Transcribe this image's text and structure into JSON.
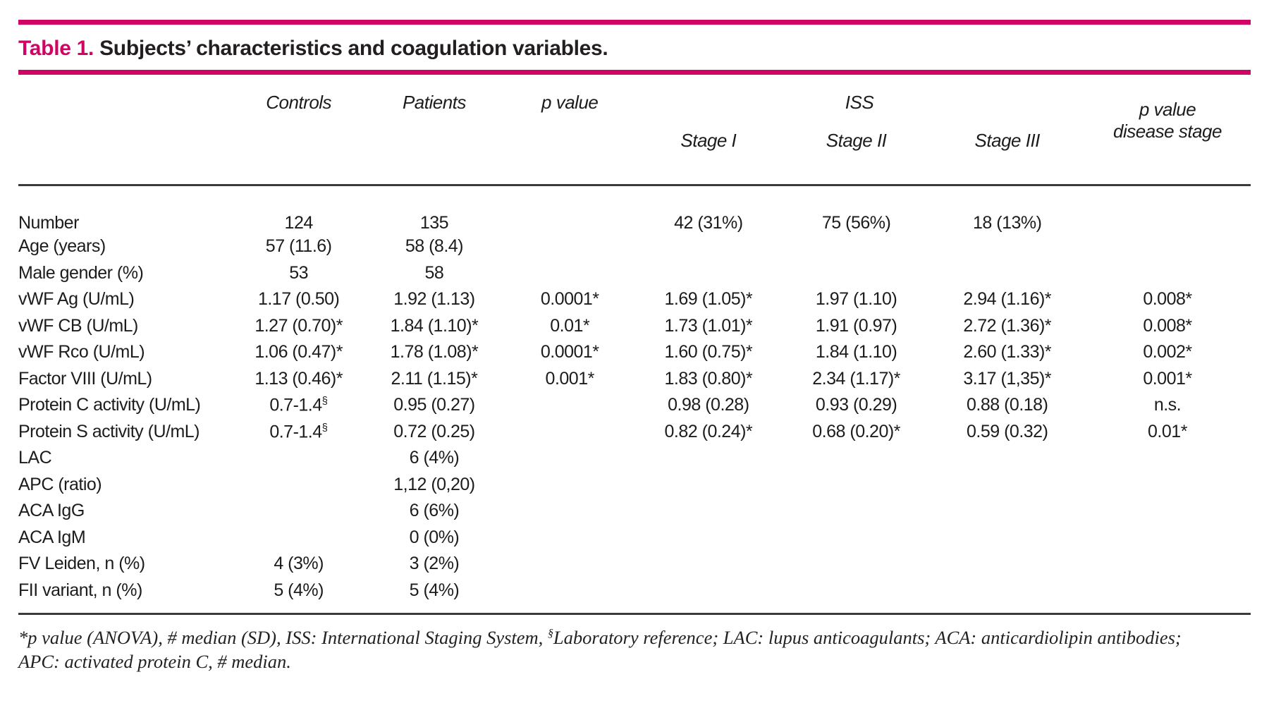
{
  "accent_color": "#cf0465",
  "title": {
    "label": "Table 1.",
    "text": "Subjects’ characteristics and coagulation variables."
  },
  "table": {
    "headers": {
      "controls": "Controls",
      "patients": "Patients",
      "p_value": "p value",
      "iss": "ISS",
      "stage1": "Stage I",
      "stage2": "Stage II",
      "stage3": "Stage III",
      "p_value_disease_line1": "p value",
      "p_value_disease_line2": "disease stage"
    },
    "rows": [
      {
        "cells": [
          "Number",
          "124",
          "135",
          "",
          "42 (31%)",
          "75 (56%)",
          "18 (13%)",
          ""
        ]
      },
      {
        "cells": [
          "Age (years)",
          "57 (11.6)",
          "58 (8.4)",
          "",
          "",
          "",
          "",
          ""
        ]
      },
      {
        "cells": [
          "Male gender (%)",
          "53",
          "58",
          "",
          "",
          "",
          "",
          ""
        ]
      },
      {
        "cells": [
          "vWF Ag (U/mL)",
          "1.17 (0.50)",
          "1.92 (1.13)",
          "0.0001*",
          "1.69 (1.05)*",
          "1.97 (1.10)",
          "2.94 (1.16)*",
          "0.008*"
        ]
      },
      {
        "cells": [
          "vWF CB (U/mL)",
          "1.27 (0.70)*",
          "1.84 (1.10)*",
          "0.01*",
          "1.73 (1.01)*",
          "1.91 (0.97)",
          "2.72 (1.36)*",
          "0.008*"
        ]
      },
      {
        "cells": [
          "vWF Rco (U/mL)",
          "1.06 (0.47)*",
          "1.78 (1.08)*",
          "0.0001*",
          "1.60 (0.75)*",
          "1.84 (1.10)",
          "2.60 (1.33)*",
          "0.002*"
        ]
      },
      {
        "cells": [
          "Factor VIII (U/mL)",
          "1.13 (0.46)*",
          "2.11 (1.15)*",
          "0.001*",
          "1.83 (0.80)*",
          "2.34 (1.17)*",
          "3.17 (1,35)*",
          "0.001*"
        ]
      },
      {
        "cells": [
          "Protein C activity (U/mL)",
          {
            "text": "0.7-1.4",
            "sup": "§"
          },
          "0.95 (0.27)",
          "",
          "0.98 (0.28)",
          "0.93 (0.29)",
          "0.88 (0.18)",
          "n.s."
        ]
      },
      {
        "cells": [
          "Protein S activity (U/mL)",
          {
            "text": "0.7-1.4",
            "sup": "§"
          },
          "0.72 (0.25)",
          "",
          "0.82 (0.24)*",
          "0.68 (0.20)*",
          "0.59 (0.32)",
          "0.01*"
        ]
      },
      {
        "cells": [
          "LAC",
          "",
          "6 (4%)",
          "",
          "",
          "",
          "",
          ""
        ]
      },
      {
        "cells": [
          "APC (ratio)",
          "",
          "1,12 (0,20)",
          "",
          "",
          "",
          "",
          ""
        ]
      },
      {
        "cells": [
          "ACA IgG",
          "",
          "6 (6%)",
          "",
          "",
          "",
          "",
          ""
        ]
      },
      {
        "cells": [
          "ACA IgM",
          "",
          "0 (0%)",
          "",
          "",
          "",
          "",
          ""
        ]
      },
      {
        "cells": [
          "FV Leiden, n (%)",
          "4 (3%)",
          "3 (2%)",
          "",
          "",
          "",
          "",
          ""
        ]
      },
      {
        "cells": [
          "FII variant, n (%)",
          "5 (4%)",
          "5 (4%)",
          "",
          "",
          "",
          "",
          ""
        ]
      }
    ],
    "footnote": {
      "line1_part1": "*p value (ANOVA), # median (SD), ISS: International Staging System, ",
      "line1_sup": "§",
      "line1_part2": "Laboratory reference; LAC: lupus anticoagulants; ACA: anticardiolipin antibodies;",
      "line2": "APC: activated protein C, # median."
    }
  }
}
